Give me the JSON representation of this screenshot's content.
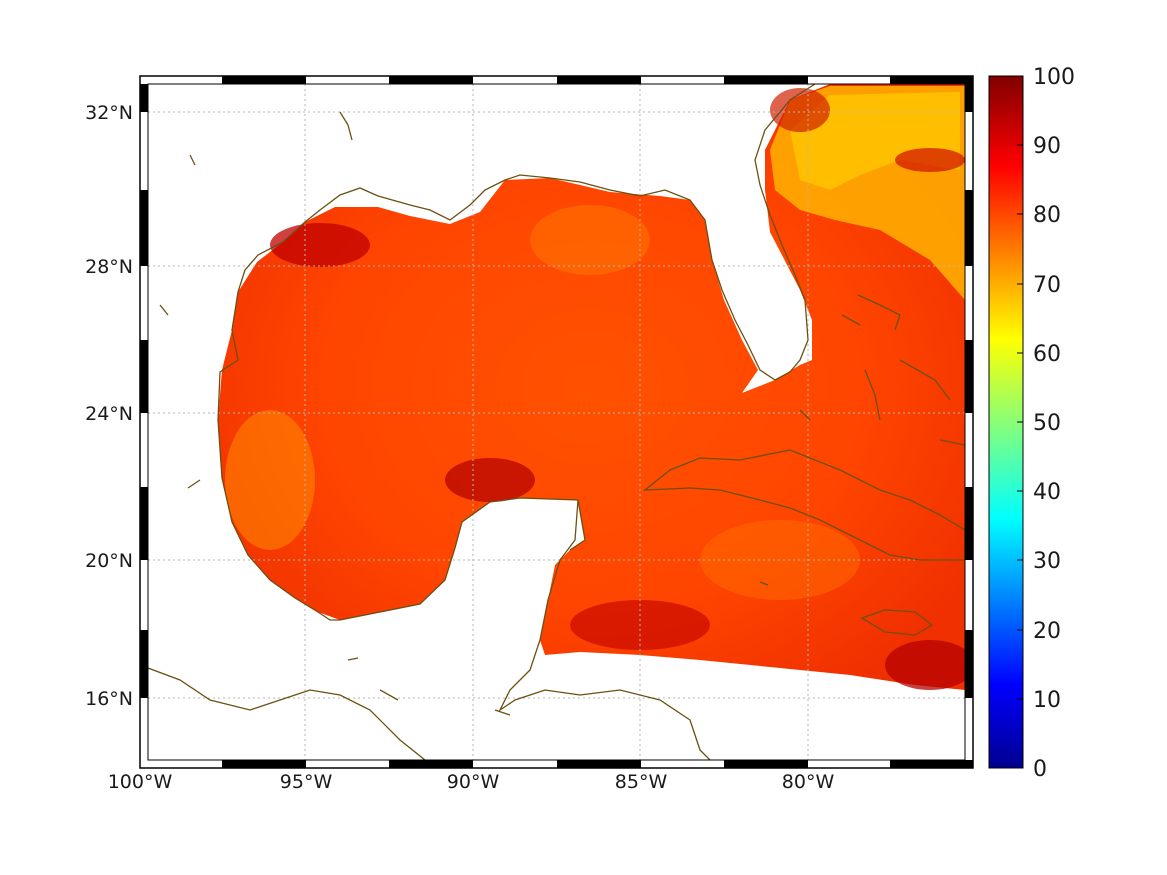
{
  "map": {
    "lon_labels": [
      "100°W",
      "95°W",
      "90°W",
      "85°W",
      "80°W"
    ],
    "lat_labels": [
      "32°N",
      "28°N",
      "24°N",
      "20°N",
      "16°N"
    ],
    "extent": {
      "lon_min": -100,
      "lon_max": -75,
      "lat_min": 14,
      "lat_max": 33
    },
    "coastline_color": "#6b5012",
    "field_colors": {
      "low": "#ff9a00",
      "mid": "#ff5a00",
      "high": "#b00000",
      "warm_atlantic": "#ffc000"
    }
  },
  "colorbar": {
    "labels": [
      "100",
      "90",
      "80",
      "70",
      "60",
      "50",
      "40",
      "30",
      "20",
      "10",
      "0"
    ],
    "min": 0,
    "max": 100,
    "colormap": "jet"
  }
}
